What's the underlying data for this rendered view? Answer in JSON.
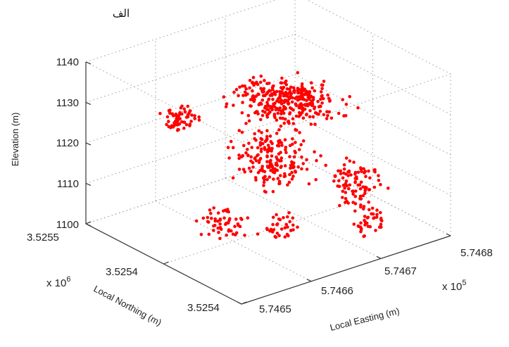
{
  "caption": "الف",
  "chart_data": {
    "type": "scatter",
    "title": "",
    "xlabel": "Local Easting (m)",
    "x_multiplier": "x 10",
    "x_exponent": "5",
    "x_ticks": [
      "5.7465",
      "5.7466",
      "5.7467",
      "5.7468"
    ],
    "ylabel": "Local Northing (m)",
    "y_multiplier": "x 10",
    "y_exponent": "6",
    "y_ticks": [
      "3.5254",
      "3.5254",
      "3.5255"
    ],
    "zlabel": "Elevation (m)",
    "z_ticks": [
      "1100",
      "1110",
      "1120",
      "1130",
      "1140"
    ],
    "zlim": [
      1100,
      1140
    ],
    "grid": true,
    "marker_color": "#ff0000",
    "clusters": [
      {
        "center_e": 0.62,
        "center_n": 0.55,
        "spread_e": 0.24,
        "spread_n": 0.3,
        "z_min": 1127,
        "z_max": 1131,
        "count": 330
      },
      {
        "center_e": 0.22,
        "center_n": 0.7,
        "spread_e": 0.1,
        "spread_n": 0.12,
        "z_min": 1126,
        "z_max": 1130,
        "count": 60
      },
      {
        "center_e": 0.48,
        "center_n": 0.45,
        "spread_e": 0.18,
        "spread_n": 0.25,
        "z_min": 1114,
        "z_max": 1125,
        "count": 190
      },
      {
        "center_e": 0.78,
        "center_n": 0.32,
        "spread_e": 0.12,
        "spread_n": 0.14,
        "z_min": 1106,
        "z_max": 1115,
        "count": 90
      },
      {
        "center_e": 0.22,
        "center_n": 0.42,
        "spread_e": 0.1,
        "spread_n": 0.14,
        "z_min": 1105,
        "z_max": 1111,
        "count": 55
      },
      {
        "center_e": 0.4,
        "center_n": 0.28,
        "spread_e": 0.08,
        "spread_n": 0.1,
        "z_min": 1104,
        "z_max": 1110,
        "count": 35
      },
      {
        "center_e": 0.7,
        "center_n": 0.12,
        "spread_e": 0.1,
        "spread_n": 0.08,
        "z_min": 1104,
        "z_max": 1110,
        "count": 40
      }
    ]
  }
}
